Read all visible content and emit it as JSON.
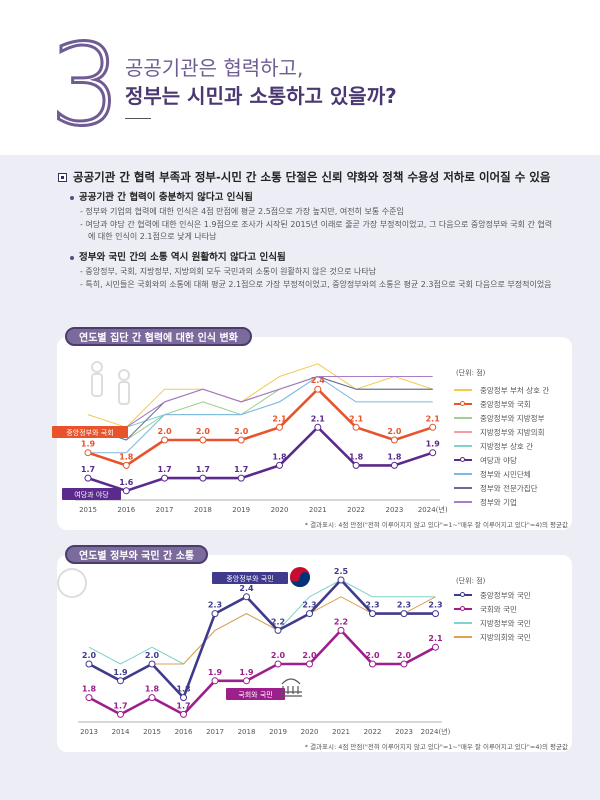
{
  "header": {
    "number": "3",
    "title_line1": "공공기관은 협력하고,",
    "title_line2": "정부는 시민과 소통하고 있을까?"
  },
  "summary": {
    "headline": "공공기관 간 협력 부족과 정부-시민 간 소통 단절은 신뢰 약화와 정책 수용성 저하로 이어질 수 있음",
    "sections": [
      {
        "title": "공공기관 간 협력이 충분하지 않다고 인식됨",
        "items": [
          "- 정부와 기업의 협력에 대한 인식은 4점 만점에 평균 2.5점으로 가장 높지만, 여전히 보통 수준임",
          "- 여당과 야당 간 협력에 대한 인식은 1.9점으로 조사가 시작된 2015년 이래로 줄곧 가장 부정적이었고, 그 다음으로 중앙정부와 국회 간 협력에 대한 인식이 2.1점으로 낮게 나타남"
        ]
      },
      {
        "title": "정부와 국민 간의 소통 역시 원활하지 않다고 인식됨",
        "items": [
          "- 중앙정부, 국회, 지방정부, 지방의회 모두 국민과의 소통이 원활하지 않은 것으로 나타남",
          "- 특히, 시민들은 국회와의 소통에 대해 평균 2.1점으로 가장 부정적이었고, 중앙정부와의 소통은 평균 2.3점으로 국회 다음으로 부정적이었음"
        ]
      }
    ]
  },
  "chart_data": [
    {
      "type": "line",
      "title": "연도별 집단 간 협력에 대한 인식 변화",
      "unit": "(단위: 점)",
      "x": [
        "2015",
        "2016",
        "2017",
        "2018",
        "2019",
        "2020",
        "2021",
        "2022",
        "2023",
        "2024(년)"
      ],
      "note": "* 결과표시: 4점 만점(\"전혀 이루어지지 않고 있다\"=1~\"매우 잘 이루어지고 있다\"=4)의 평균값",
      "callouts": [
        "중앙정부와 국회",
        "여당과 야당"
      ],
      "series": [
        {
          "name": "중앙정부 부처 상호 간",
          "color": "#f2c94c",
          "values": [
            2.2,
            2.1,
            2.4,
            2.4,
            2.3,
            2.5,
            2.6,
            2.4,
            2.5,
            2.4
          ]
        },
        {
          "name": "중앙정부와 국회",
          "color": "#e8532b",
          "marker": true,
          "labeled": true,
          "values": [
            1.9,
            1.8,
            2.0,
            2.0,
            2.0,
            2.1,
            2.4,
            2.1,
            2.0,
            2.1
          ]
        },
        {
          "name": "중앙정부와 지방정부",
          "color": "#9fd08f",
          "values": [
            2.1,
            2.0,
            2.2,
            2.3,
            2.2,
            2.4,
            2.5,
            2.4,
            2.4,
            2.4
          ]
        },
        {
          "name": "지방정부와 지방의회",
          "color": "#f0a0a8",
          "values": [
            2.1,
            2.1,
            2.3,
            2.4,
            2.3,
            2.4,
            2.5,
            2.4,
            2.4,
            2.4
          ]
        },
        {
          "name": "지방정부 상호 간",
          "color": "#7fd3cc",
          "values": [
            2.1,
            2.1,
            2.2,
            2.2,
            2.2,
            2.3,
            2.5,
            2.4,
            2.4,
            2.4
          ]
        },
        {
          "name": "여당과 야당",
          "color": "#5b2a8c",
          "marker": true,
          "labeled": true,
          "values": [
            1.7,
            1.6,
            1.7,
            1.7,
            1.7,
            1.8,
            2.1,
            1.8,
            1.8,
            1.9
          ]
        },
        {
          "name": "정부와 시민단체",
          "color": "#7fb8e0",
          "values": [
            1.9,
            1.9,
            2.2,
            2.2,
            2.2,
            2.3,
            2.5,
            2.3,
            2.3,
            2.3
          ]
        },
        {
          "name": "정부와 전문가집단",
          "color": "#6a6a9a",
          "values": [
            2.1,
            2.0,
            2.3,
            2.4,
            2.3,
            2.4,
            2.5,
            2.4,
            2.4,
            2.4
          ]
        },
        {
          "name": "정부와 기업",
          "color": "#a87cc8",
          "values": [
            2.1,
            2.1,
            2.3,
            2.4,
            2.3,
            2.4,
            2.5,
            2.5,
            2.5,
            2.5
          ]
        }
      ]
    },
    {
      "type": "line",
      "title": "연도별 정부와 국민 간 소통",
      "unit": "(단위: 점)",
      "x": [
        "2013",
        "2014",
        "2015",
        "2016",
        "2017",
        "2018",
        "2019",
        "2020",
        "2021",
        "2022",
        "2023",
        "2024(년)"
      ],
      "note": "* 결과표시: 4점 만점(\"전혀 이루어지지 않고 있다\"=1~\"매우 잘 이루어지고 있다\"=4)의 평균값",
      "callouts": [
        "중앙정부와 국민",
        "국회와 국민"
      ],
      "series": [
        {
          "name": "중앙정부와 국민",
          "color": "#3f3a8c",
          "marker": true,
          "labeled": true,
          "values": [
            2.0,
            1.9,
            2.0,
            1.8,
            2.3,
            2.4,
            2.2,
            2.3,
            2.5,
            2.3,
            2.3,
            2.3
          ]
        },
        {
          "name": "국회와 국민",
          "color": "#9c1f8c",
          "marker": true,
          "labeled": true,
          "values": [
            1.8,
            1.7,
            1.8,
            1.7,
            1.9,
            1.9,
            2.0,
            2.0,
            2.2,
            2.0,
            2.0,
            2.1
          ]
        },
        {
          "name": "지방정부와 국민",
          "color": "#7fd3cc",
          "values": [
            2.1,
            2.0,
            2.1,
            2.0,
            2.2,
            2.3,
            2.2,
            2.4,
            2.5,
            2.4,
            2.4,
            2.4
          ]
        },
        {
          "name": "지방의회와 국민",
          "color": "#e0a050",
          "values": [
            null,
            null,
            2.0,
            2.0,
            2.2,
            2.3,
            2.2,
            2.3,
            2.4,
            2.3,
            2.3,
            2.4
          ]
        }
      ]
    }
  ]
}
